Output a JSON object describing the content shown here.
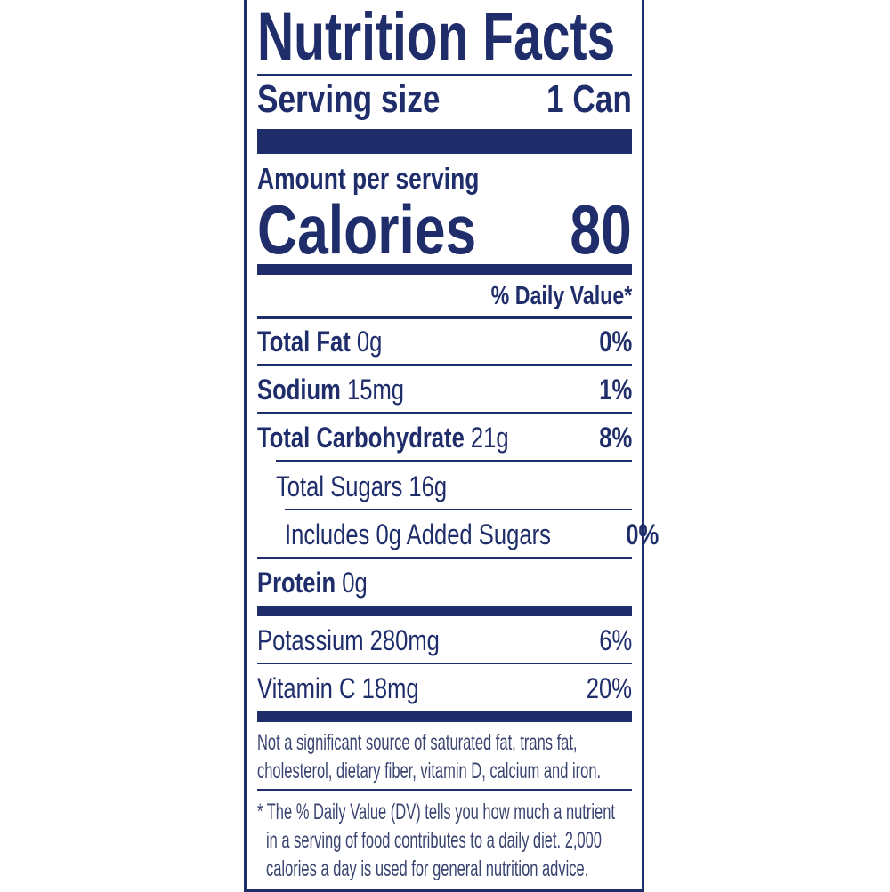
{
  "title": "Nutrition Facts",
  "serving": {
    "label": "Serving size",
    "value": "1 Can"
  },
  "amount_per_serving": "Amount per serving",
  "calories": {
    "label": "Calories",
    "value": "80"
  },
  "daily_value_header": "% Daily Value*",
  "nutrients": [
    {
      "name": "Total Fat",
      "amount": "0g",
      "dv": "0%"
    },
    {
      "name": "Sodium",
      "amount": "15mg",
      "dv": "1%"
    },
    {
      "name": "Total Carbohydrate",
      "amount": "21g",
      "dv": "8%"
    },
    {
      "name": "Total Sugars 16g",
      "amount": "",
      "dv": ""
    },
    {
      "name": "Includes 0g Added Sugars",
      "amount": "",
      "dv": "0%"
    },
    {
      "name": "Protein",
      "amount": "0g",
      "dv": ""
    }
  ],
  "vitamins": [
    {
      "name": "Potassium 280mg",
      "dv": "6%"
    },
    {
      "name": "Vitamin C 18mg",
      "dv": "20%"
    }
  ],
  "footnote_1": [
    "Not a significant source of saturated fat, trans fat,",
    "cholesterol, dietary fiber, vitamin D, calcium and iron."
  ],
  "footnote_2": [
    "* The % Daily Value (DV) tells you how much a nutrient",
    "in a serving of food contributes to a daily diet. 2,000",
    "calories a day is used for general nutrition advice."
  ],
  "colors": {
    "ink": "#1f2d6b",
    "background": "#ffffff"
  }
}
